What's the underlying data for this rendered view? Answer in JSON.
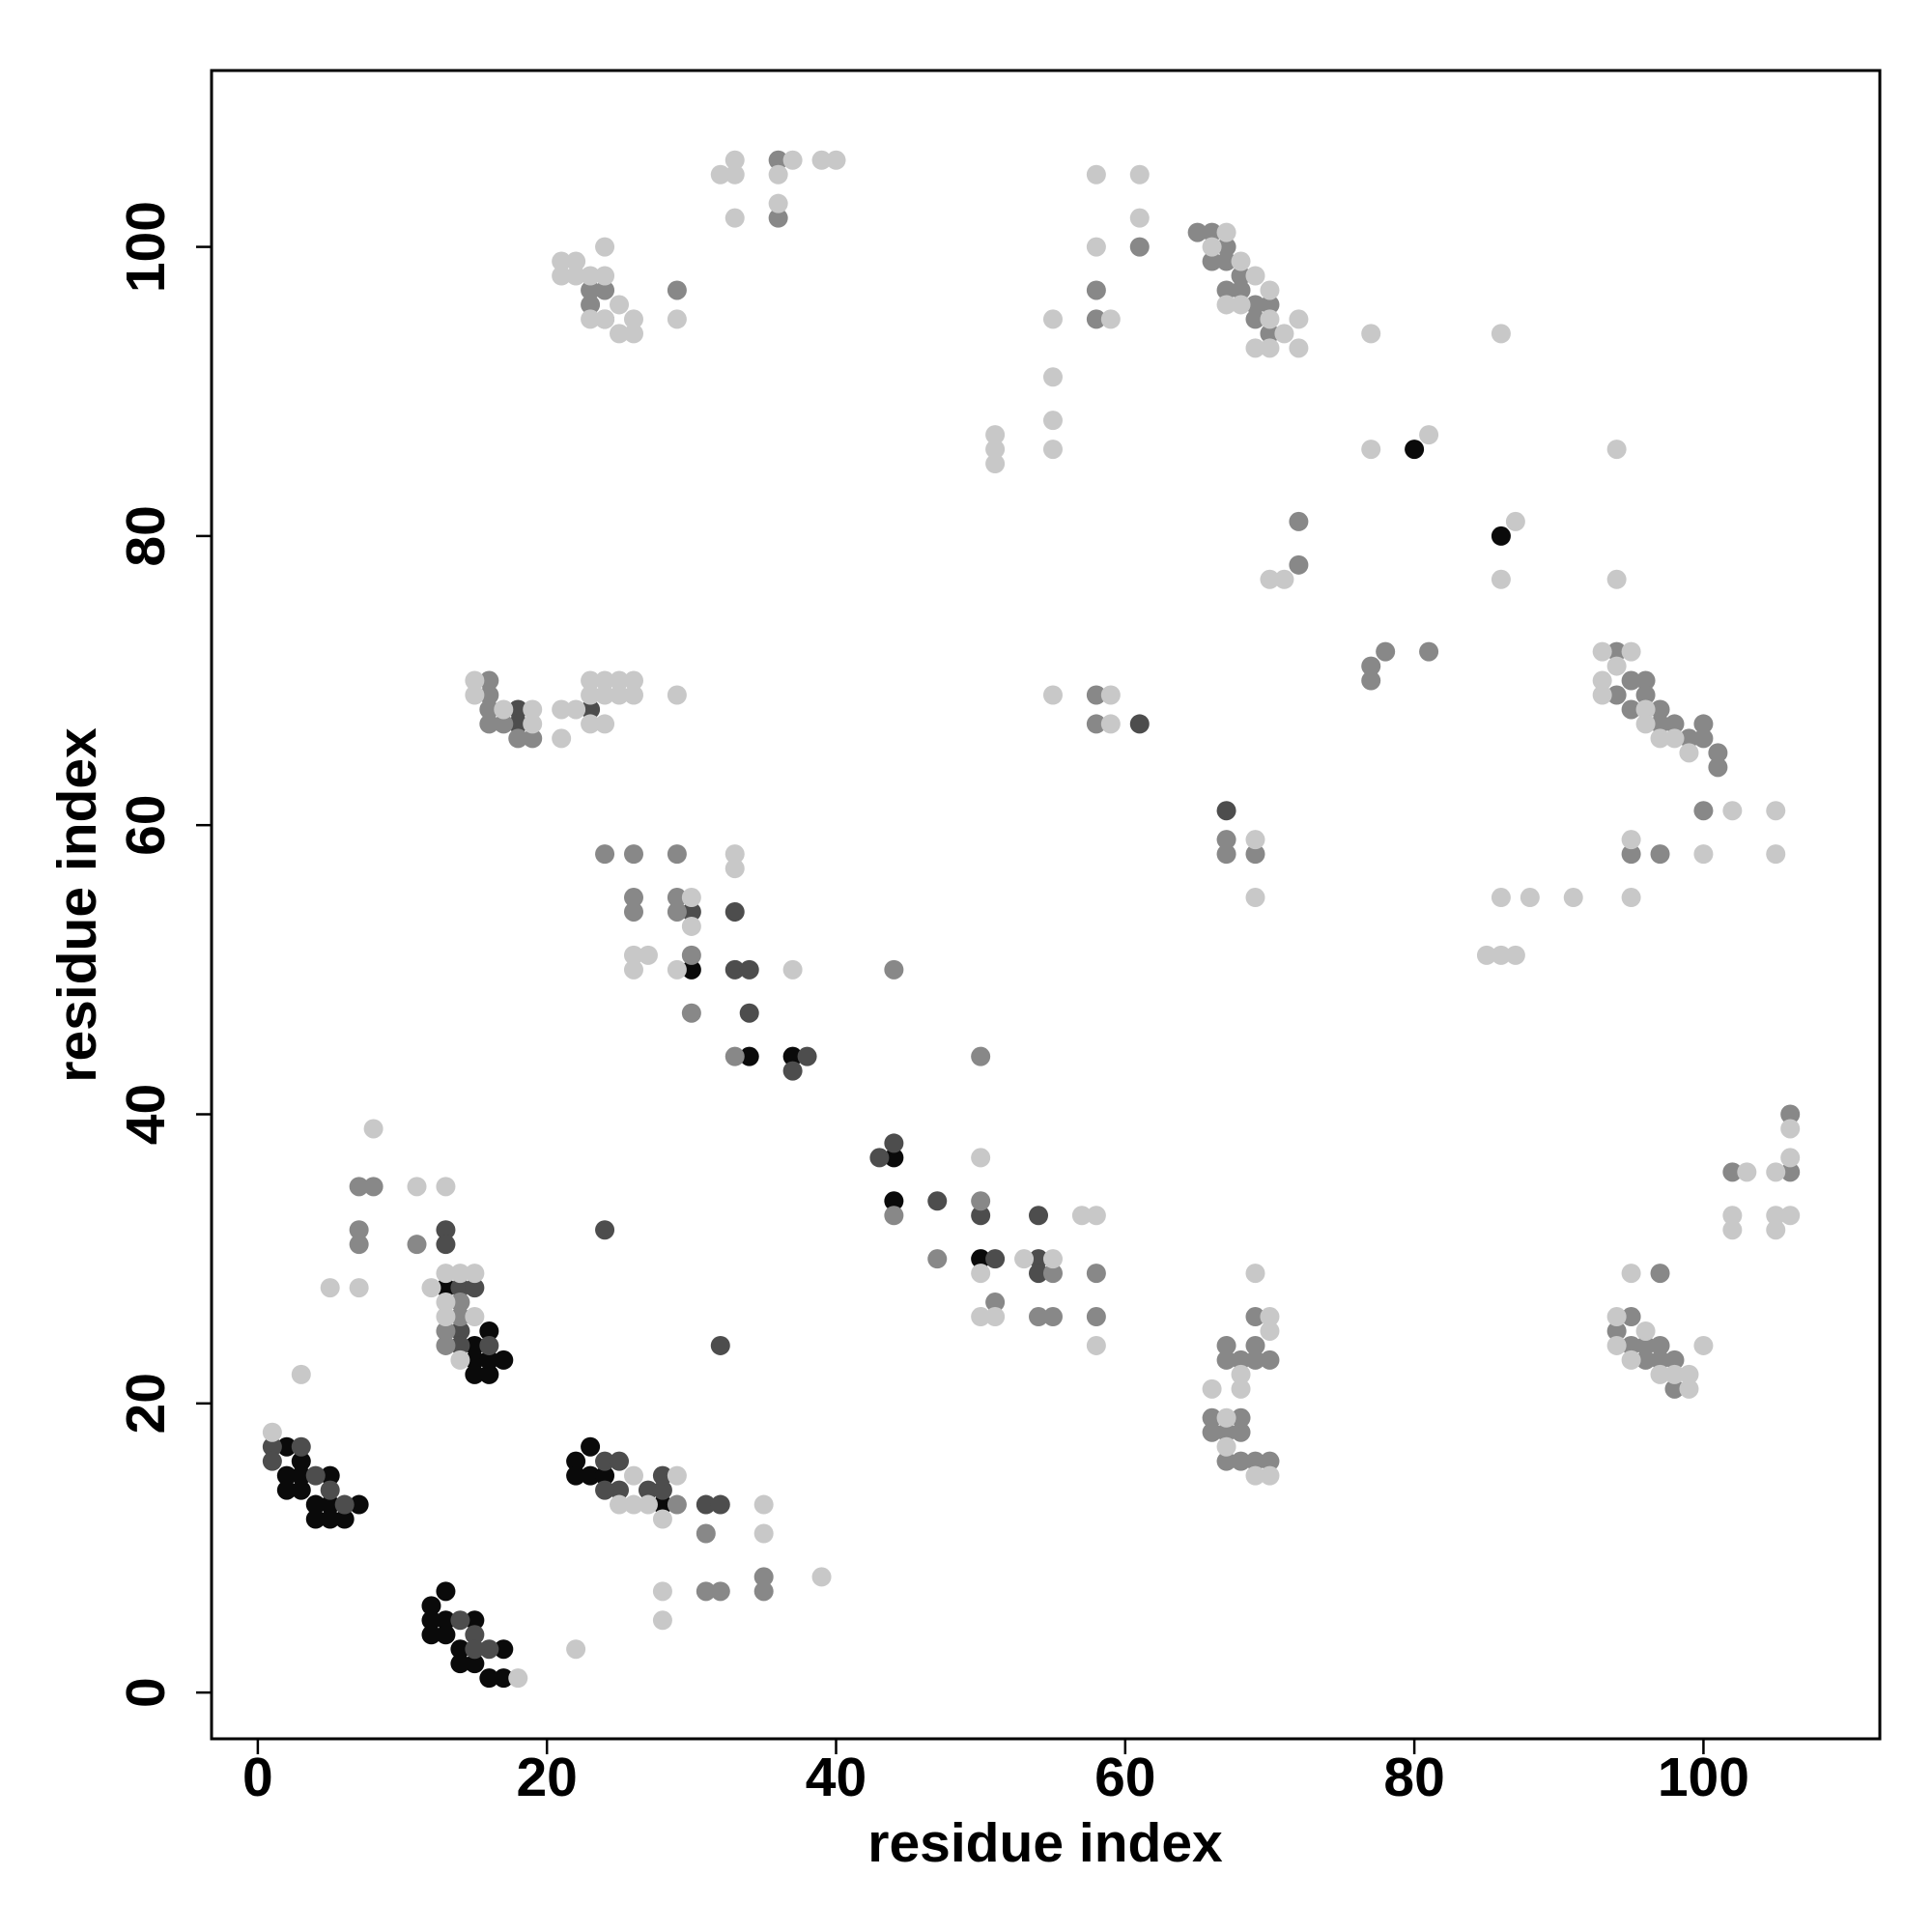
{
  "chart_data": {
    "type": "scatter",
    "xlabel": "residue index",
    "ylabel": "residue index",
    "xlim": [
      -3.2,
      112.2
    ],
    "ylim": [
      -3.2,
      112.2
    ],
    "xticks": [
      0,
      20,
      40,
      60,
      80,
      100
    ],
    "yticks": [
      0,
      20,
      40,
      60,
      80,
      100
    ],
    "series": [
      {
        "color": "#0a0a0a",
        "x": [
          2,
          3,
          2,
          3,
          4,
          4,
          5,
          5,
          6,
          7,
          2,
          3,
          5,
          13,
          15,
          15,
          15,
          16,
          16,
          17,
          16,
          22,
          22,
          23,
          24,
          23,
          28,
          12,
          12,
          12,
          13,
          13,
          13,
          14,
          14,
          15,
          15,
          16,
          17,
          17,
          30,
          34,
          37,
          44,
          44,
          50,
          80,
          86
        ],
        "y": [
          17,
          16,
          15,
          14,
          13,
          12,
          12,
          15,
          12,
          13,
          14,
          15,
          13,
          28,
          24,
          23,
          22,
          22,
          23,
          23,
          25,
          16,
          15,
          15,
          15,
          17,
          13,
          6,
          5,
          4,
          7,
          5,
          4,
          3,
          2,
          5,
          2,
          1,
          1,
          3,
          50,
          44,
          44,
          37,
          34,
          30,
          86,
          80
        ]
      },
      {
        "color": "#4d4d4d",
        "x": [
          1,
          1,
          3,
          4,
          5,
          6,
          13,
          13,
          14,
          15,
          14,
          14,
          16,
          24,
          25,
          25,
          24,
          27,
          28,
          28,
          31,
          32,
          14,
          15,
          16,
          15,
          33,
          30,
          33,
          34,
          34,
          38,
          37,
          44,
          43,
          32,
          47,
          51,
          54,
          54,
          54,
          50,
          18,
          18,
          61,
          67,
          23,
          24
        ],
        "y": [
          17,
          16,
          17,
          15,
          14,
          13,
          32,
          31,
          28,
          28,
          25,
          24,
          24,
          16,
          16,
          14,
          14,
          14,
          14,
          15,
          13,
          13,
          5,
          4,
          3,
          3,
          54,
          54,
          50,
          50,
          47,
          44,
          43,
          38,
          37,
          24,
          34,
          30,
          30,
          29,
          33,
          33,
          68,
          67,
          67,
          61,
          68,
          32
        ]
      },
      {
        "color": "#888888",
        "x": [
          16,
          16,
          16,
          16,
          17,
          18,
          19,
          23,
          24,
          24,
          23,
          36,
          36,
          29,
          61,
          58,
          58,
          65,
          66,
          67,
          67,
          68,
          68,
          69,
          69,
          70,
          70,
          67,
          66,
          95,
          96,
          96,
          97,
          97,
          98,
          99,
          100,
          100,
          101,
          101,
          95,
          94,
          94,
          100,
          67,
          67,
          69,
          58,
          58,
          72,
          72,
          77,
          77,
          78,
          81,
          26,
          26,
          26,
          29,
          29,
          29,
          30,
          30,
          33,
          44,
          44,
          47,
          50,
          50,
          51,
          55,
          55,
          54,
          58,
          58,
          29,
          31,
          31,
          32,
          35,
          35,
          7,
          8,
          7,
          7,
          11,
          14,
          14,
          13,
          13,
          67,
          67,
          68,
          69,
          69,
          69,
          70,
          66,
          66,
          67,
          67,
          68,
          68,
          69,
          70,
          68,
          94,
          95,
          95,
          96,
          96,
          97,
          97,
          98,
          98,
          97,
          102,
          106,
          106,
          95,
          97,
          24
        ],
        "y": [
          70,
          69,
          68,
          67,
          67,
          66,
          66,
          96,
          97,
          95,
          97,
          106,
          102,
          97,
          100,
          97,
          95,
          101,
          101,
          100,
          99,
          98,
          97,
          96,
          95,
          96,
          94,
          97,
          99,
          70,
          70,
          69,
          68,
          67,
          67,
          66,
          67,
          66,
          65,
          64,
          68,
          72,
          69,
          61,
          59,
          58,
          58,
          69,
          67,
          81,
          78,
          71,
          70,
          72,
          72,
          58,
          55,
          54,
          58,
          55,
          54,
          51,
          47,
          44,
          50,
          33,
          30,
          44,
          34,
          27,
          29,
          26,
          26,
          29,
          26,
          13,
          11,
          7,
          7,
          8,
          7,
          35,
          35,
          32,
          31,
          31,
          26,
          27,
          24,
          25,
          24,
          23,
          23,
          24,
          26,
          23,
          23,
          19,
          18,
          18,
          16,
          18,
          16,
          16,
          16,
          19,
          25,
          26,
          24,
          24,
          23,
          24,
          23,
          23,
          21,
          29,
          36,
          36,
          40,
          58,
          58,
          58
        ]
      },
      {
        "color": "#c8c8c8",
        "x": [
          1,
          3,
          5,
          7,
          8,
          11,
          12,
          13,
          13,
          13,
          13,
          14,
          14,
          15,
          15,
          18,
          22,
          26,
          26,
          25,
          27,
          28,
          28,
          28,
          29,
          35,
          35,
          39,
          21,
          22,
          21,
          22,
          23,
          24,
          24,
          23,
          24,
          25,
          25,
          26,
          26,
          29,
          32,
          33,
          33,
          33,
          36,
          36,
          37,
          39,
          40,
          58,
          61,
          61,
          58,
          59,
          55,
          55,
          55,
          55,
          51,
          51,
          51,
          66,
          67,
          68,
          69,
          70,
          70,
          71,
          72,
          72,
          70,
          69,
          68,
          67,
          77,
          86,
          77,
          81,
          87,
          86,
          70,
          71,
          94,
          94,
          93,
          93,
          93,
          95,
          94,
          96,
          97,
          98,
          99,
          102,
          105,
          105,
          100,
          95,
          95,
          91,
          88,
          86,
          85,
          86,
          87,
          69,
          69,
          69,
          70,
          70,
          68,
          68,
          66,
          67,
          67,
          69,
          70,
          94,
          94,
          95,
          95,
          96,
          97,
          98,
          99,
          99,
          100,
          102,
          102,
          103,
          105,
          105,
          105,
          106,
          106,
          106,
          15,
          15,
          17,
          19,
          19,
          21,
          22,
          21,
          23,
          23,
          24,
          24,
          25,
          25,
          26,
          26,
          24,
          23,
          29,
          55,
          59,
          59,
          26,
          27,
          26,
          29,
          30,
          30,
          33,
          33,
          37,
          50,
          50,
          50,
          51,
          53,
          55,
          57,
          58,
          58,
          96
        ],
        "y": [
          18,
          22,
          28,
          28,
          39,
          35,
          28,
          35,
          29,
          27,
          26,
          29,
          23,
          29,
          26,
          1,
          3,
          15,
          13,
          13,
          13,
          12,
          7,
          5,
          15,
          13,
          11,
          8,
          99,
          99,
          98,
          98,
          98,
          98,
          100,
          95,
          95,
          96,
          94,
          95,
          94,
          95,
          105,
          105,
          106,
          102,
          105,
          103,
          106,
          106,
          106,
          105,
          105,
          102,
          100,
          95,
          95,
          91,
          88,
          86,
          87,
          86,
          85,
          100,
          101,
          99,
          98,
          97,
          95,
          94,
          95,
          93,
          93,
          93,
          96,
          96,
          94,
          94,
          86,
          87,
          81,
          77,
          77,
          77,
          86,
          77,
          72,
          70,
          69,
          72,
          71,
          68,
          66,
          66,
          65,
          61,
          61,
          58,
          58,
          59,
          55,
          55,
          55,
          55,
          51,
          51,
          51,
          59,
          55,
          29,
          26,
          25,
          22,
          21,
          21,
          19,
          17,
          15,
          15,
          26,
          24,
          23,
          29,
          25,
          22,
          22,
          22,
          21,
          24,
          33,
          32,
          36,
          36,
          33,
          32,
          33,
          39,
          37,
          70,
          69,
          68,
          67,
          68,
          68,
          68,
          66,
          70,
          69,
          70,
          69,
          70,
          69,
          70,
          69,
          67,
          67,
          69,
          69,
          69,
          67,
          51,
          51,
          50,
          50,
          55,
          53,
          58,
          57,
          50,
          37,
          29,
          26,
          26,
          30,
          30,
          33,
          33,
          24,
          67
        ]
      }
    ]
  }
}
